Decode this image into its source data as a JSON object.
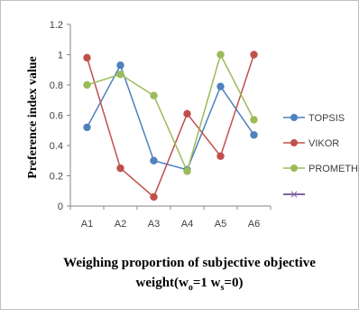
{
  "chart_data": {
    "type": "line",
    "categories": [
      "A1",
      "A2",
      "A3",
      "A4",
      "A5",
      "A6"
    ],
    "ylabel": "Preference index value",
    "ylim": [
      0,
      1.2
    ],
    "yticks": [
      "0",
      "0.2",
      "0.4",
      "0.6",
      "0.8",
      "1",
      "1.2"
    ],
    "grid": false,
    "legend": "right",
    "series": [
      {
        "name": "TOPSIS",
        "color": "#4F81BD",
        "values": [
          0.52,
          0.93,
          0.3,
          0.24,
          0.79,
          0.47
        ]
      },
      {
        "name": "VIKOR",
        "color": "#C0504D",
        "values": [
          0.98,
          0.25,
          0.06,
          0.61,
          0.33,
          1.0
        ]
      },
      {
        "name": "PROMETHEE",
        "color": "#9BBB59",
        "values": [
          0.8,
          0.87,
          0.73,
          0.23,
          1.0,
          0.57
        ]
      }
    ],
    "extra_legend_entry": {
      "color": "#8064A2",
      "marker": "×"
    }
  },
  "caption": {
    "line1": "Weighing proportion of subjective objective",
    "line2_prefix": "weight(w",
    "line2_sub1": "o",
    "line2_mid": "=1 w",
    "line2_sub2": "s",
    "line2_suffix": "=0)"
  }
}
